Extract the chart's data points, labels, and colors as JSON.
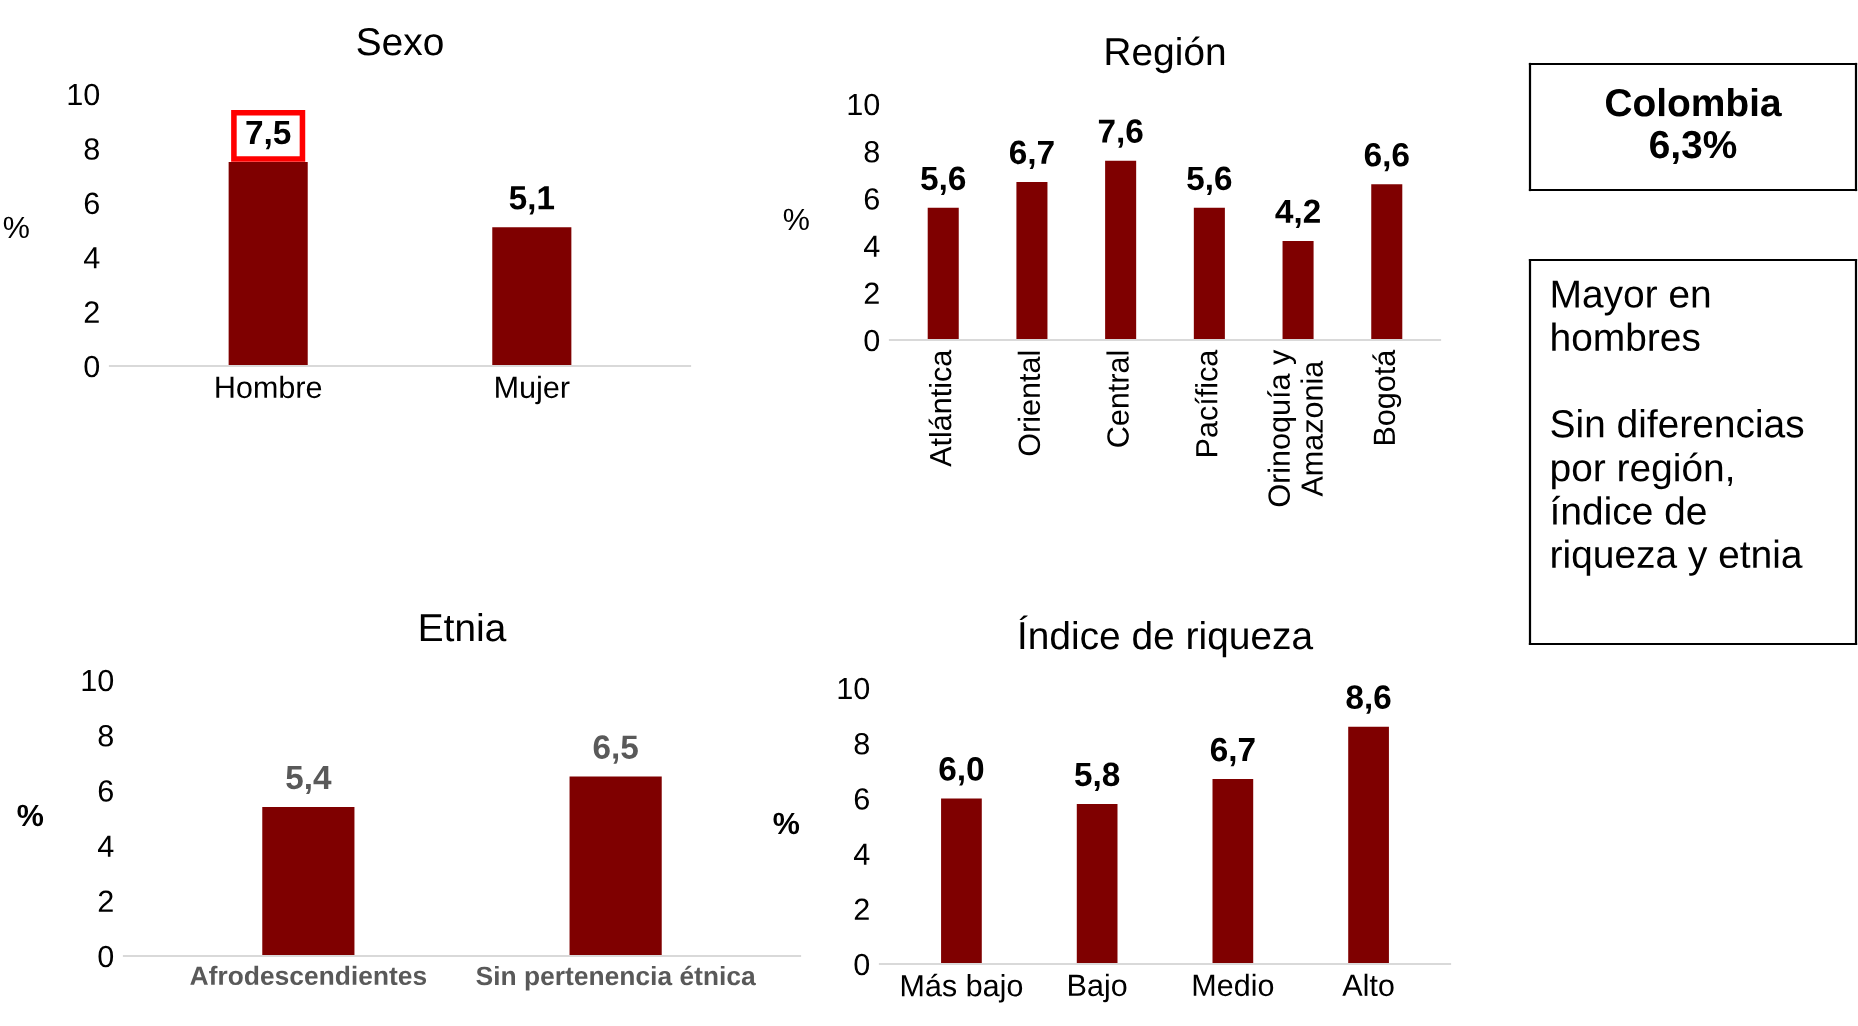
{
  "chart_data": [
    {
      "type": "bar",
      "title": "Sexo",
      "ylabel": "%",
      "categories": [
        "Hombre",
        "Mujer"
      ],
      "values": [
        7.5,
        5.1
      ],
      "value_labels": [
        "7,5",
        "5,1"
      ],
      "color": "#7f0000",
      "ylim": [
        0,
        10
      ],
      "yticks": [
        0,
        2,
        4,
        6,
        8,
        10
      ],
      "grid": false,
      "legend": false
    },
    {
      "type": "bar",
      "title": "Región",
      "ylabel": "%",
      "categories": [
        "Atlántica",
        "Oriental",
        "Central",
        "Pacífica",
        "Orinoquía y\nAmazonia",
        "Bogotá"
      ],
      "values": [
        5.6,
        6.7,
        7.6,
        5.6,
        4.2,
        6.6
      ],
      "value_labels": [
        "5,6",
        "6,7",
        "7,6",
        "5,6",
        "4,2",
        "6,6"
      ],
      "color": "#7f0000",
      "ylim": [
        0,
        10
      ],
      "yticks": [
        0,
        2,
        4,
        6,
        8,
        10
      ],
      "grid": false,
      "legend": false
    },
    {
      "type": "bar",
      "title": "Etnia",
      "ylabel": "%",
      "categories": [
        "Afrodescendientes",
        "Sin pertenencia étnica"
      ],
      "values": [
        5.4,
        6.5
      ],
      "value_labels": [
        "5,4",
        "6,5"
      ],
      "color": "#7f0000",
      "ylim": [
        0,
        10
      ],
      "yticks": [
        0,
        2,
        4,
        6,
        8,
        10
      ],
      "grid": false,
      "legend": false
    },
    {
      "type": "bar",
      "title": "Índice de riqueza",
      "ylabel": "%",
      "categories": [
        "Más bajo",
        "Bajo",
        "Medio",
        "Alto"
      ],
      "values": [
        6.0,
        5.8,
        6.7,
        8.6
      ],
      "value_labels": [
        "6,0",
        "5,8",
        "6,7",
        "8,6"
      ],
      "color": "#7f0000",
      "ylim": [
        0,
        10
      ],
      "yticks": [
        0,
        2,
        4,
        6,
        8,
        10
      ],
      "grid": false,
      "legend": false
    },
    {
      "type": "other",
      "annotations": [
        "Colombia\n6,3%"
      ]
    },
    {
      "type": "other",
      "annotations": [
        "Mayor en\nhombres\n\nSin diferencias\npor región,\níndice de\nriqueza y etnia"
      ]
    }
  ]
}
